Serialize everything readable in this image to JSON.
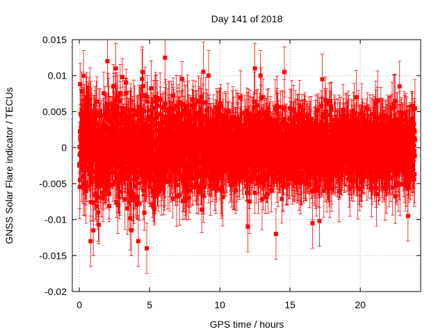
{
  "chart_data": {
    "type": "scatter",
    "title": "Day 141 of 2018",
    "xlabel": "GPS time / hours",
    "ylabel": "GNSS Solar Flare indicator / TECUs",
    "xlim": [
      -0.5,
      24.3
    ],
    "ylim": [
      -0.02,
      0.015
    ],
    "xticks": [
      0,
      5,
      10,
      15,
      20
    ],
    "xtick_labels": [
      "0",
      "5",
      "10",
      "15",
      "20"
    ],
    "yticks": [
      -0.02,
      -0.015,
      -0.01,
      -0.005,
      0,
      0.005,
      0.01,
      0.015
    ],
    "ytick_labels": [
      "-0.02",
      "-0.015",
      "-0.01",
      "-0.005",
      "0",
      "0.005",
      "0.01",
      "0.015"
    ],
    "grid": true,
    "series_color": "#ff0000",
    "grid_color": "#a0a0a0",
    "series": [
      {
        "name": "solar flare indicator",
        "x_range": [
          0,
          23.9
        ],
        "point_count": 2880,
        "style": "points with error bars",
        "typical_spread": 0.0045,
        "typical_error": 0.003
      }
    ],
    "notable_points": [
      {
        "x": 0.3,
        "y": 0.01
      },
      {
        "x": 0.8,
        "y": -0.013
      },
      {
        "x": 1.0,
        "y": -0.0115
      },
      {
        "x": 2.0,
        "y": 0.012
      },
      {
        "x": 2.6,
        "y": 0.011
      },
      {
        "x": 3.7,
        "y": -0.0115
      },
      {
        "x": 4.2,
        "y": -0.013
      },
      {
        "x": 4.8,
        "y": -0.014
      },
      {
        "x": 4.5,
        "y": 0.0105
      },
      {
        "x": 6.1,
        "y": 0.0125
      },
      {
        "x": 9.2,
        "y": 0.01
      },
      {
        "x": 12.0,
        "y": -0.011
      },
      {
        "x": 12.5,
        "y": 0.011
      },
      {
        "x": 12.9,
        "y": 0.01
      },
      {
        "x": 14.0,
        "y": -0.012
      },
      {
        "x": 14.6,
        "y": 0.0105
      },
      {
        "x": 16.6,
        "y": -0.0105
      },
      {
        "x": 17.1,
        "y": -0.0102
      },
      {
        "x": 17.3,
        "y": 0.0095
      },
      {
        "x": 22.8,
        "y": 0.0085
      },
      {
        "x": 23.4,
        "y": -0.0095
      }
    ]
  }
}
